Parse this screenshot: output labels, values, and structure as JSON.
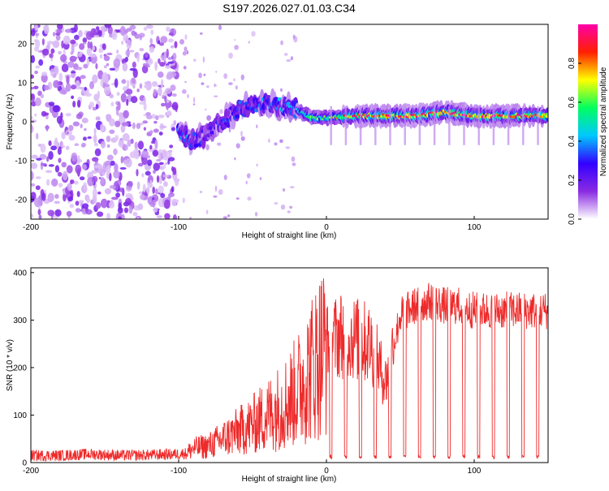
{
  "title": "S197.2026.027.01.03.C34",
  "chart_data": [
    {
      "type": "heatmap",
      "name": "spectrogram",
      "xlabel": "Height of straight line (km)",
      "ylabel": "Frequency (Hz)",
      "xlim": [
        -200,
        150
      ],
      "ylim": [
        -25,
        25
      ],
      "xticks": [
        -200,
        -100,
        0,
        100
      ],
      "yticks": [
        -20,
        -10,
        0,
        10,
        20
      ],
      "colorbar": {
        "label": "Normalized spectral amplitude",
        "range": [
          0.0,
          1.0
        ],
        "ticks": [
          0.0,
          0.2,
          0.4,
          0.6,
          0.8
        ],
        "tick_labels": [
          "0.0",
          "0.2",
          "0.4",
          "0.6",
          "0.8"
        ],
        "colors": [
          "#ffffff",
          "#8a2be2",
          "#3300ff",
          "#00c8ff",
          "#00ff60",
          "#ffff00",
          "#ff2000",
          "#ff00aa"
        ]
      },
      "ridge": {
        "description_points_x": [
          -100,
          -90,
          -80,
          -60,
          -40,
          -20,
          -10,
          0,
          20,
          40,
          60,
          80,
          100,
          120,
          140
        ],
        "frequency_hz": [
          -3,
          -5,
          -3,
          3,
          5,
          3,
          1,
          1,
          1.5,
          1.5,
          1.5,
          2.5,
          1.5,
          1.5,
          1.5
        ],
        "peak_amplitude": [
          0.35,
          0.3,
          0.25,
          0.3,
          0.35,
          0.4,
          0.6,
          0.55,
          0.8,
          0.9,
          0.85,
          0.9,
          0.9,
          0.85,
          0.8
        ]
      }
    },
    {
      "type": "line",
      "name": "snr",
      "xlabel": "Height of straight line (km)",
      "ylabel": "SNR (10 * v/v)",
      "xlim": [
        -200,
        150
      ],
      "ylim": [
        0,
        410
      ],
      "xticks": [
        -200,
        -100,
        0,
        100
      ],
      "yticks": [
        0,
        100,
        200,
        300,
        400
      ],
      "color": "#ee2a2a",
      "series": [
        {
          "name": "SNR",
          "x": [
            -200,
            -180,
            -160,
            -140,
            -120,
            -100,
            -95,
            -90,
            -80,
            -70,
            -60,
            -50,
            -40,
            -30,
            -20,
            -10,
            0,
            10,
            20,
            30,
            40,
            50,
            60,
            70,
            80,
            90,
            100,
            110,
            120,
            130,
            140,
            150
          ],
          "y": [
            15,
            15,
            18,
            15,
            16,
            18,
            20,
            30,
            35,
            50,
            65,
            80,
            100,
            120,
            150,
            200,
            250,
            270,
            260,
            250,
            170,
            310,
            330,
            340,
            330,
            330,
            320,
            320,
            320,
            320,
            320,
            320
          ]
        }
      ],
      "dropouts_x": [
        3,
        13,
        23,
        33,
        43,
        53,
        63,
        73,
        83,
        93,
        103,
        113,
        123,
        133,
        143
      ]
    }
  ]
}
